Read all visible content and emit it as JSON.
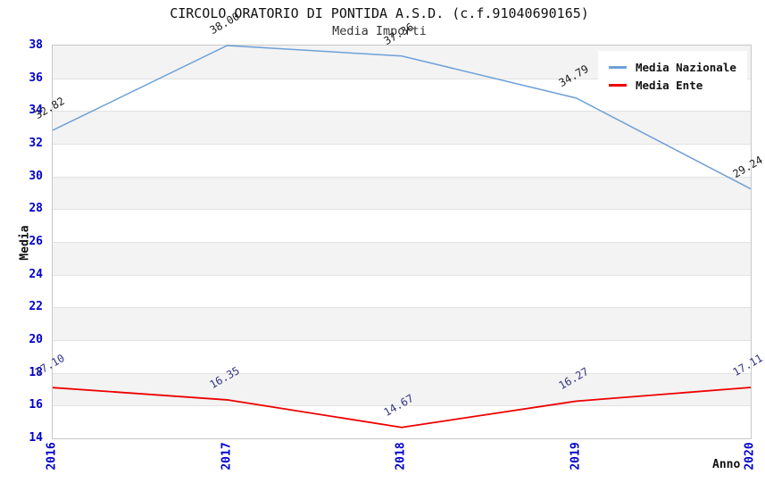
{
  "title": "CIRCOLO ORATORIO DI PONTIDA A.S.D. (c.f.91040690165)",
  "subtitle": "Media Importi",
  "chart_data": {
    "type": "line",
    "title": "CIRCOLO ORATORIO DI PONTIDA A.S.D. (c.f.91040690165)",
    "subtitle": "Media Importi",
    "categories": [
      "2016",
      "2017",
      "2018",
      "2019",
      "2020"
    ],
    "series": [
      {
        "name": "Media Nazionale",
        "color": "#6ea0d7",
        "label_color": "#1a1a1a",
        "values": [
          32.82,
          38.0,
          37.36,
          34.79,
          29.24
        ],
        "labels": [
          "32.82",
          "38.00",
          "37.36",
          "34.79",
          "29.24"
        ]
      },
      {
        "name": "Media Ente",
        "color": "#ee0000",
        "label_color": "#333388",
        "values": [
          17.1,
          16.35,
          14.67,
          16.27,
          17.11
        ],
        "labels": [
          "17.10",
          "16.35",
          "14.67",
          "16.27",
          "17.11"
        ]
      }
    ],
    "xlabel": "Anno",
    "ylabel": "Media",
    "ylim": [
      14,
      38
    ],
    "ytick_step": 2,
    "yticks": [
      14,
      16,
      18,
      20,
      22,
      24,
      26,
      28,
      30,
      32,
      34,
      36,
      38
    ],
    "grid": "horizontal-bands-alternating",
    "legend_position": "top-right",
    "tick_label_color": "#0000cc",
    "band_color": "#f3f3f3",
    "grid_color": "#e2e2e2"
  }
}
